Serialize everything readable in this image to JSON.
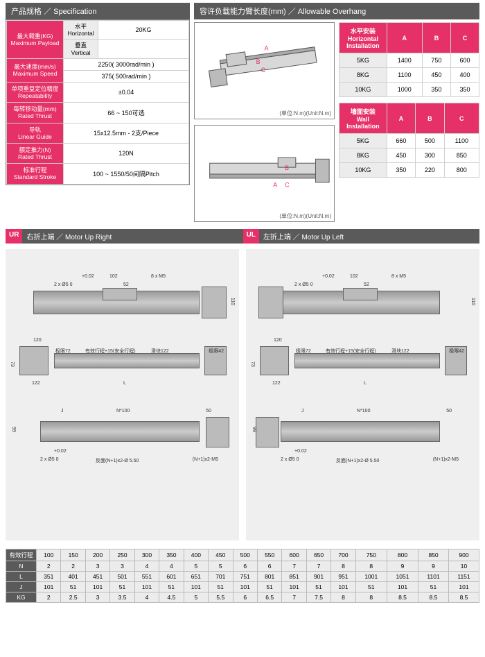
{
  "spec": {
    "header": "产品规格 ／ Specification",
    "rows": {
      "payload_label": "最大载重(KG)\nMaximum Payload",
      "payload_h_sub": "水平\nHorizontal",
      "payload_h_val": "20KG",
      "payload_v_sub": "垂直\nVertical",
      "payload_v_val": "",
      "speed_label": "最大速度(mm/s)\nMaximum Speed",
      "speed_v1": "2250( 3000rad/min )",
      "speed_v2": "375( 500rad/min )",
      "repeat_label": "单项重复定位精度\nRepeatability",
      "repeat_val": "±0.04",
      "thrust_label": "每转移动量(mm)\nRated Thrust",
      "thrust_val": "66 ~ 150可选",
      "guide_label": "导轨\nLinear Guide",
      "guide_val": "15x12.5mm - 2支/Piece",
      "rated_label": "额定推力(N)\nRated Thrust",
      "rated_val": "120N",
      "stroke_label": "标准行程\nStandard Stroke",
      "stroke_val": "100 ~ 1550/50间隔Pitch"
    }
  },
  "overhang": {
    "header": "容许负载能力臂长度(mm) ／ Allowable Overhang",
    "unit": "(单位:N.m)(Unit:N.m)",
    "tables": [
      {
        "title": "水平安装\nHorizontal Installation",
        "cols": [
          "A",
          "B",
          "C"
        ],
        "rows": [
          {
            "k": "5KG",
            "v": [
              "1400",
              "750",
              "600"
            ]
          },
          {
            "k": "8KG",
            "v": [
              "1100",
              "450",
              "400"
            ]
          },
          {
            "k": "10KG",
            "v": [
              "1000",
              "350",
              "350"
            ]
          }
        ]
      },
      {
        "title": "墙面安装\nWall Installation",
        "cols": [
          "A",
          "B",
          "C"
        ],
        "rows": [
          {
            "k": "5KG",
            "v": [
              "660",
              "500",
              "1100"
            ]
          },
          {
            "k": "8KG",
            "v": [
              "450",
              "300",
              "850"
            ]
          },
          {
            "k": "10KG",
            "v": [
              "350",
              "220",
              "800"
            ]
          }
        ]
      }
    ]
  },
  "motor": {
    "ur_tag": "UR",
    "ur_label": "右折上端 ／ Motor Up Right",
    "ul_tag": "UL",
    "ul_label": "左折上端 ／ Motor Up Left",
    "dims": {
      "d1": "+0.02",
      "d2": "102",
      "d3": "8 x M5",
      "d4": "2 x Ø5  0",
      "d5": "52",
      "d6": "110",
      "d7": "120",
      "d8": "极限72",
      "d9": "有效行程+15(安全行程)",
      "d10": "滑块122",
      "d11": "极限42",
      "d12": "73",
      "d13": "122",
      "d14": "L",
      "d15": "J",
      "d16": "N*100",
      "d17": "50",
      "d18": "99",
      "d19": "反面(N+1)x2-Ø 5.50",
      "d20": "(N+1)x2-M5"
    }
  },
  "bottom": {
    "rlabel": "有效行程",
    "hdrs": [
      "100",
      "150",
      "200",
      "250",
      "300",
      "350",
      "400",
      "450",
      "500",
      "550",
      "600",
      "650",
      "700",
      "750",
      "800",
      "850",
      "900"
    ],
    "rows": [
      {
        "k": "N",
        "v": [
          "2",
          "2",
          "3",
          "3",
          "4",
          "4",
          "5",
          "5",
          "6",
          "6",
          "7",
          "7",
          "8",
          "8",
          "9",
          "9",
          "10"
        ]
      },
      {
        "k": "L",
        "v": [
          "351",
          "401",
          "451",
          "501",
          "551",
          "601",
          "651",
          "701",
          "751",
          "801",
          "851",
          "901",
          "951",
          "1001",
          "1051",
          "1101",
          "1151"
        ]
      },
      {
        "k": "J",
        "v": [
          "101",
          "51",
          "101",
          "51",
          "101",
          "51",
          "101",
          "51",
          "101",
          "51",
          "101",
          "51",
          "101",
          "51",
          "101",
          "51",
          "101"
        ]
      },
      {
        "k": "KG",
        "v": [
          "2",
          "2.5",
          "3",
          "3.5",
          "4",
          "4.5",
          "5",
          "5.5",
          "6",
          "6.5",
          "7",
          "7.5",
          "8",
          "8",
          "8.5",
          "8.5",
          "8.5"
        ]
      }
    ]
  },
  "colors": {
    "pink": "#e63168",
    "gray": "#5a5a5a",
    "lightgray": "#ececec"
  }
}
